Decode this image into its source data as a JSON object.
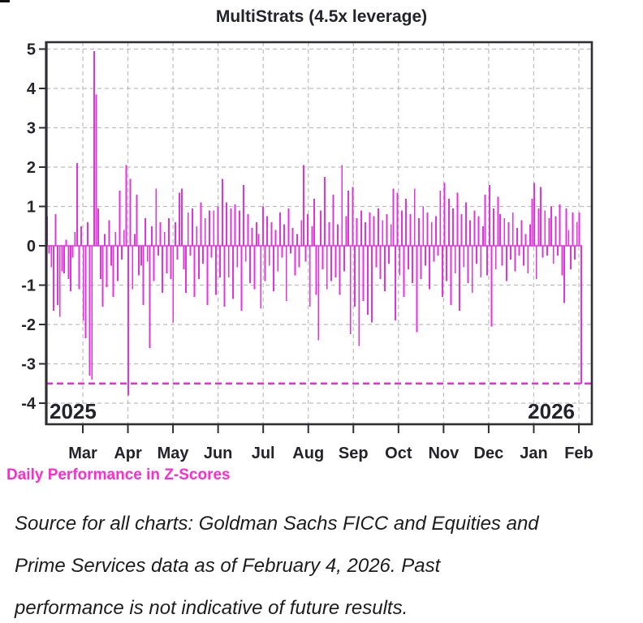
{
  "chart": {
    "title": "MultiStrats (4.5x leverage)",
    "caption": "Daily Performance in Z-Scores",
    "year_left": "2025",
    "year_right": "2026"
  },
  "source_note": {
    "lines": [
      "Source for all charts: Goldman Sachs FICC and Equities and",
      "Prime Services data as of February 4, 2026. Past",
      "performance is not indicative of future results."
    ]
  },
  "chart_data": {
    "type": "bar",
    "title": "MultiStrats (4.5x leverage)",
    "ylabel": "Daily Performance in Z-Scores",
    "series_name": "Daily performance z-score",
    "x_tick_labels": [
      "Mar",
      "Apr",
      "May",
      "Jun",
      "Jul",
      "Aug",
      "Sep",
      "Oct",
      "Nov",
      "Dec",
      "Jan",
      "Feb"
    ],
    "x_year_labels": [
      "2025",
      "2026"
    ],
    "x_range_note": "daily bars, early Feb 2025 through Feb 4 2026",
    "y_ticks": [
      5,
      4,
      3,
      2,
      1,
      0,
      -1,
      -2,
      -3,
      -4
    ],
    "ylim": [
      -4.55,
      5.15
    ],
    "grid": true,
    "legend": false,
    "threshold_line_y": -3.5,
    "values": [
      0.75,
      -0.2,
      -0.55,
      -1.65,
      0.8,
      -1.5,
      -1.8,
      -0.65,
      -0.7,
      0.15,
      -0.85,
      -1.15,
      -0.3,
      0.35,
      2.1,
      -1.1,
      0.5,
      -1.9,
      -2.35,
      0.6,
      -3.3,
      -3.4,
      4.95,
      3.85,
      0.95,
      -0.85,
      -1.55,
      0.3,
      -1.05,
      0.65,
      -0.5,
      -1.3,
      0.35,
      -0.9,
      1.4,
      -0.35,
      0.4,
      2.05,
      -3.8,
      1.7,
      -1.1,
      0.3,
      1.3,
      -0.75,
      -0.5,
      -1.5,
      0.7,
      -0.4,
      -2.6,
      0.5,
      -0.9,
      1.45,
      -0.25,
      0.6,
      -1.2,
      0.35,
      -0.7,
      0.7,
      -0.85,
      -1.95,
      0.6,
      -0.35,
      1.35,
      1.45,
      -0.6,
      -1.2,
      0.85,
      -0.25,
      0.95,
      -1.3,
      0.5,
      -0.85,
      1.1,
      -0.45,
      0.7,
      -1.5,
      0.9,
      -0.3,
      0.9,
      -1.25,
      1.0,
      -0.8,
      1.7,
      -1.55,
      1.1,
      -0.8,
      0.95,
      -1.35,
      1.05,
      -0.55,
      0.9,
      -1.65,
      1.55,
      -0.4,
      0.8,
      -0.95,
      0.45,
      -1.1,
      0.6,
      0.3,
      -1.6,
      1.0,
      -0.9,
      0.75,
      -0.5,
      0.6,
      -1.15,
      0.4,
      -0.65,
      0.85,
      -0.3,
      0.55,
      -1.4,
      0.95,
      -0.2,
      0.45,
      -0.75,
      0.3,
      -0.55,
      0.65,
      2.05,
      -0.4,
      0.8,
      -1.55,
      0.5,
      1.2,
      -1.25,
      -2.4,
      0.9,
      -0.6,
      1.75,
      -1.1,
      0.6,
      -0.9,
      1.3,
      -0.8,
      0.55,
      -1.25,
      2.05,
      -0.65,
      0.75,
      1.4,
      -2.25,
      1.5,
      -1.55,
      0.7,
      -2.55,
      0.9,
      -1.4,
      0.6,
      -1.75,
      0.85,
      -1.95,
      0.75,
      -0.55,
      0.95,
      -0.85,
      0.65,
      -1.15,
      0.8,
      -0.45,
      0.55,
      1.45,
      -1.9,
      1.35,
      -0.75,
      0.9,
      -1.3,
      1.2,
      -0.6,
      0.8,
      -0.95,
      1.45,
      -2.2,
      0.7,
      -0.85,
      1.0,
      -0.5,
      0.85,
      -1.1,
      0.6,
      -0.4,
      0.75,
      -0.25,
      1.4,
      -1.3,
      1.6,
      -0.9,
      1.2,
      -1.5,
      0.95,
      -0.7,
      1.35,
      -1.65,
      0.8,
      -0.55,
      1.1,
      -0.95,
      0.65,
      -1.2,
      0.9,
      -0.45,
      0.75,
      -0.8,
      0.5,
      1.3,
      -0.75,
      1.55,
      -2.05,
      0.95,
      -0.6,
      1.25,
      0.8,
      -0.5,
      0.7,
      -0.9,
      0.6,
      -0.35,
      0.85,
      -0.65,
      0.45,
      -0.25,
      0.65,
      -0.5,
      0.3,
      -0.7,
      0.55,
      1.2,
      1.6,
      -0.85,
      0.95,
      1.5,
      -0.3,
      0.9,
      -0.25,
      0.7,
      1.0,
      -0.45,
      0.75,
      -0.25,
      1.05,
      -0.75,
      -1.45,
      0.95,
      0.4,
      -0.6,
      0.85,
      -0.35,
      0.6,
      0.85,
      -3.5
    ],
    "colors": {
      "bar": "#E234DC",
      "threshold": "#E92ED8",
      "caption": "#FF2BCC",
      "grid": "#BDBDBD",
      "axis": "#2E2E33",
      "text": "#23232B"
    }
  }
}
